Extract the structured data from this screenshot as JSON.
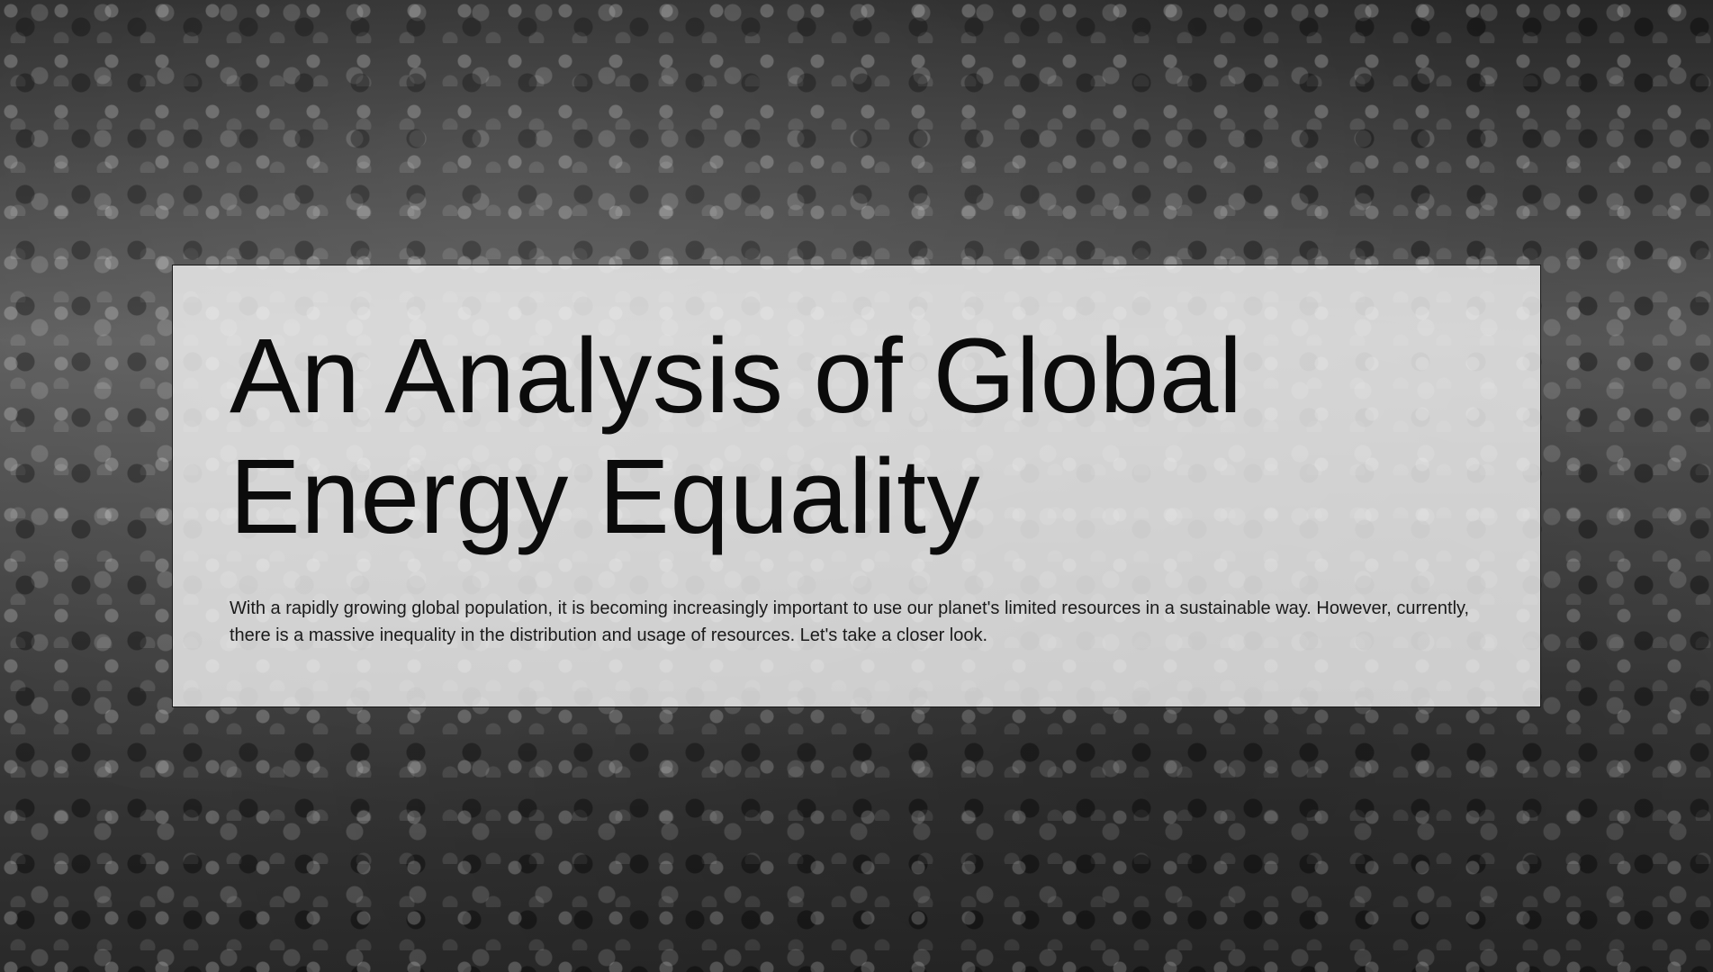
{
  "hero": {
    "title": "An Analysis of Global\nEnergy Equality",
    "lead": "With a rapidly growing global population, it is becoming increasingly important to use our planet's limited resources in a sustainable way. However, currently, there is a massive inequality in the distribution and usage of resources. Let's take a closer look."
  },
  "theme": {
    "photo_tone": "grayscale",
    "card_background": "#f5f5f5",
    "card_border": "#1a1a1a",
    "text_color": "#0b0b0b"
  }
}
